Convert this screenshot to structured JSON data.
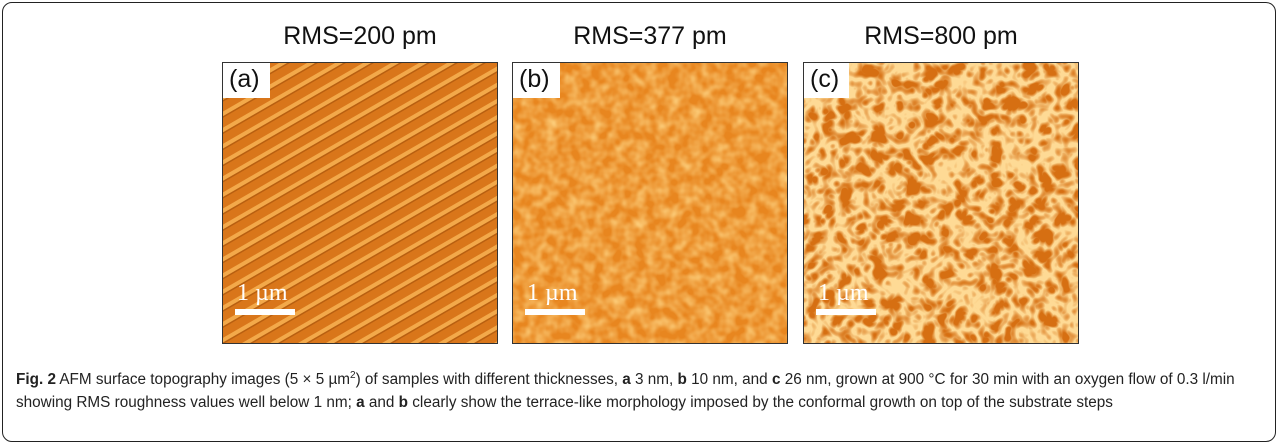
{
  "figure": {
    "panels": [
      {
        "title": "RMS=200 pm",
        "label": "(a)",
        "scale_bar": "1 µm"
      },
      {
        "title": "RMS=377 pm",
        "label": "(b)",
        "scale_bar": "1 µm"
      },
      {
        "title": "RMS=800 pm",
        "label": "(c)",
        "scale_bar": "1 µm"
      }
    ],
    "caption": [
      {
        "text": "Fig. 2",
        "style": "bold"
      },
      {
        "text": " AFM surface topography images (5 × 5 µm"
      },
      {
        "text": "2",
        "style": "sup"
      },
      {
        "text": ") of samples with different thicknesses, "
      },
      {
        "text": "a",
        "style": "bold"
      },
      {
        "text": " 3 nm, "
      },
      {
        "text": "b",
        "style": "bold"
      },
      {
        "text": " 10 nm, and "
      },
      {
        "text": "c",
        "style": "bold"
      },
      {
        "text": " 26 nm, grown at 900 °C for 30 min with an oxygen flow of 0.3 l/min showing RMS roughness values well below 1 nm; "
      },
      {
        "text": "a",
        "style": "bold"
      },
      {
        "text": " and "
      },
      {
        "text": "b",
        "style": "bold"
      },
      {
        "text": " clearly show the terrace-like morphology imposed by the conformal growth on top of the substrate steps"
      }
    ]
  }
}
